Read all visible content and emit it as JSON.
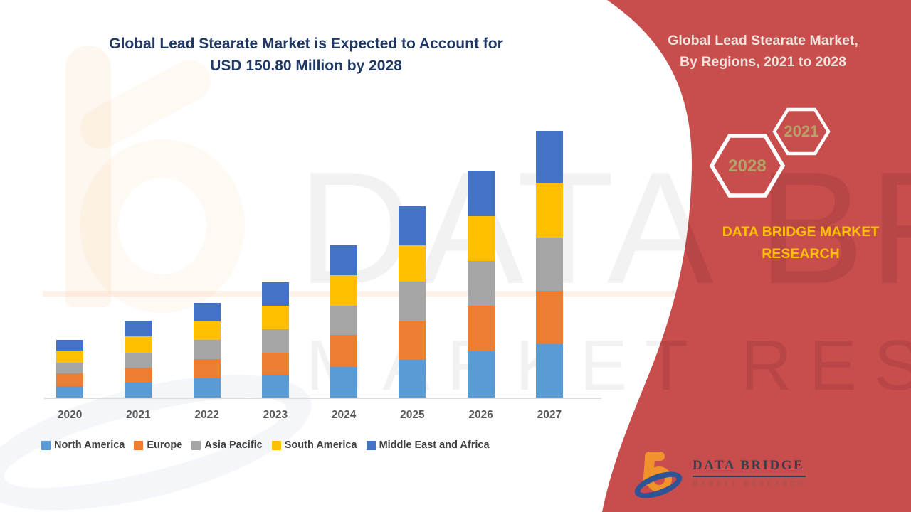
{
  "header": {
    "title_line1": "Global Lead Stearate Market is Expected to Account for",
    "title_line2": "USD 150.80 Million by 2028"
  },
  "sidebar": {
    "title_line1": "Global Lead Stearate Market,",
    "title_line2": "By Regions, 2021 to 2028",
    "hexagon_back_label": "2028",
    "hexagon_front_label": "2021",
    "brand": "DATA BRIDGE MARKET RESEARCH"
  },
  "watermark": {
    "line1": "DATA BRIDGE",
    "line2": "MARKET RESEARCH"
  },
  "logo": {
    "name": "DATA BRIDGE",
    "subtitle": "MARKET RESEARCH"
  },
  "chart_data": {
    "type": "bar",
    "subtype": "stacked",
    "title": "Global Lead Stearate Market is Expected to Account for USD 150.80 Million by 2028",
    "categories": [
      "2020",
      "2021",
      "2022",
      "2023",
      "2024",
      "2025",
      "2026",
      "2027"
    ],
    "series": [
      {
        "name": "North America",
        "color": "#5B9BD5",
        "values": [
          6.0,
          7.9,
          10.1,
          12.0,
          16.1,
          19.8,
          24.3,
          28.1
        ]
      },
      {
        "name": "Europe",
        "color": "#ED7D31",
        "values": [
          6.7,
          7.9,
          10.1,
          11.6,
          16.8,
          20.2,
          23.9,
          28.1
        ]
      },
      {
        "name": "Asia Pacific",
        "color": "#A5A5A5",
        "values": [
          5.6,
          7.9,
          10.1,
          12.3,
          15.3,
          20.9,
          23.6,
          28.1
        ]
      },
      {
        "name": "South America",
        "color": "#FFC000",
        "values": [
          6.4,
          8.6,
          9.7,
          12.3,
          16.1,
          19.1,
          23.6,
          28.4
        ]
      },
      {
        "name": "Middle East and Africa",
        "color": "#4472C4",
        "values": [
          5.6,
          8.2,
          9.7,
          12.3,
          15.7,
          20.9,
          23.9,
          27.7
        ]
      }
    ],
    "totals": [
      30.3,
      40.5,
      49.7,
      60.5,
      80.0,
      100.9,
      119.3,
      140.4
    ],
    "stack_order_bottom_to_top": [
      "North America",
      "Europe",
      "Asia Pacific",
      "South America",
      "Middle East and Africa"
    ],
    "y_axis_visible": false,
    "values_estimated_usd_million": true,
    "ylim": [
      0,
      150
    ],
    "grid": false,
    "legend_position": "bottom"
  },
  "colors": {
    "accent_red": "#C84D4D",
    "title_navy": "#1F3864",
    "sidebar_text": "#F2E2DC",
    "brand_yellow": "#FFC000",
    "hex_text": "#B5A268",
    "legend_text": "#404040",
    "axis_label": "#595959",
    "logo_orange": "#F1932B",
    "logo_blue": "#2F5496",
    "logo_text_dark": "#3A3E4A",
    "logo_subtext": "#9C5550"
  }
}
